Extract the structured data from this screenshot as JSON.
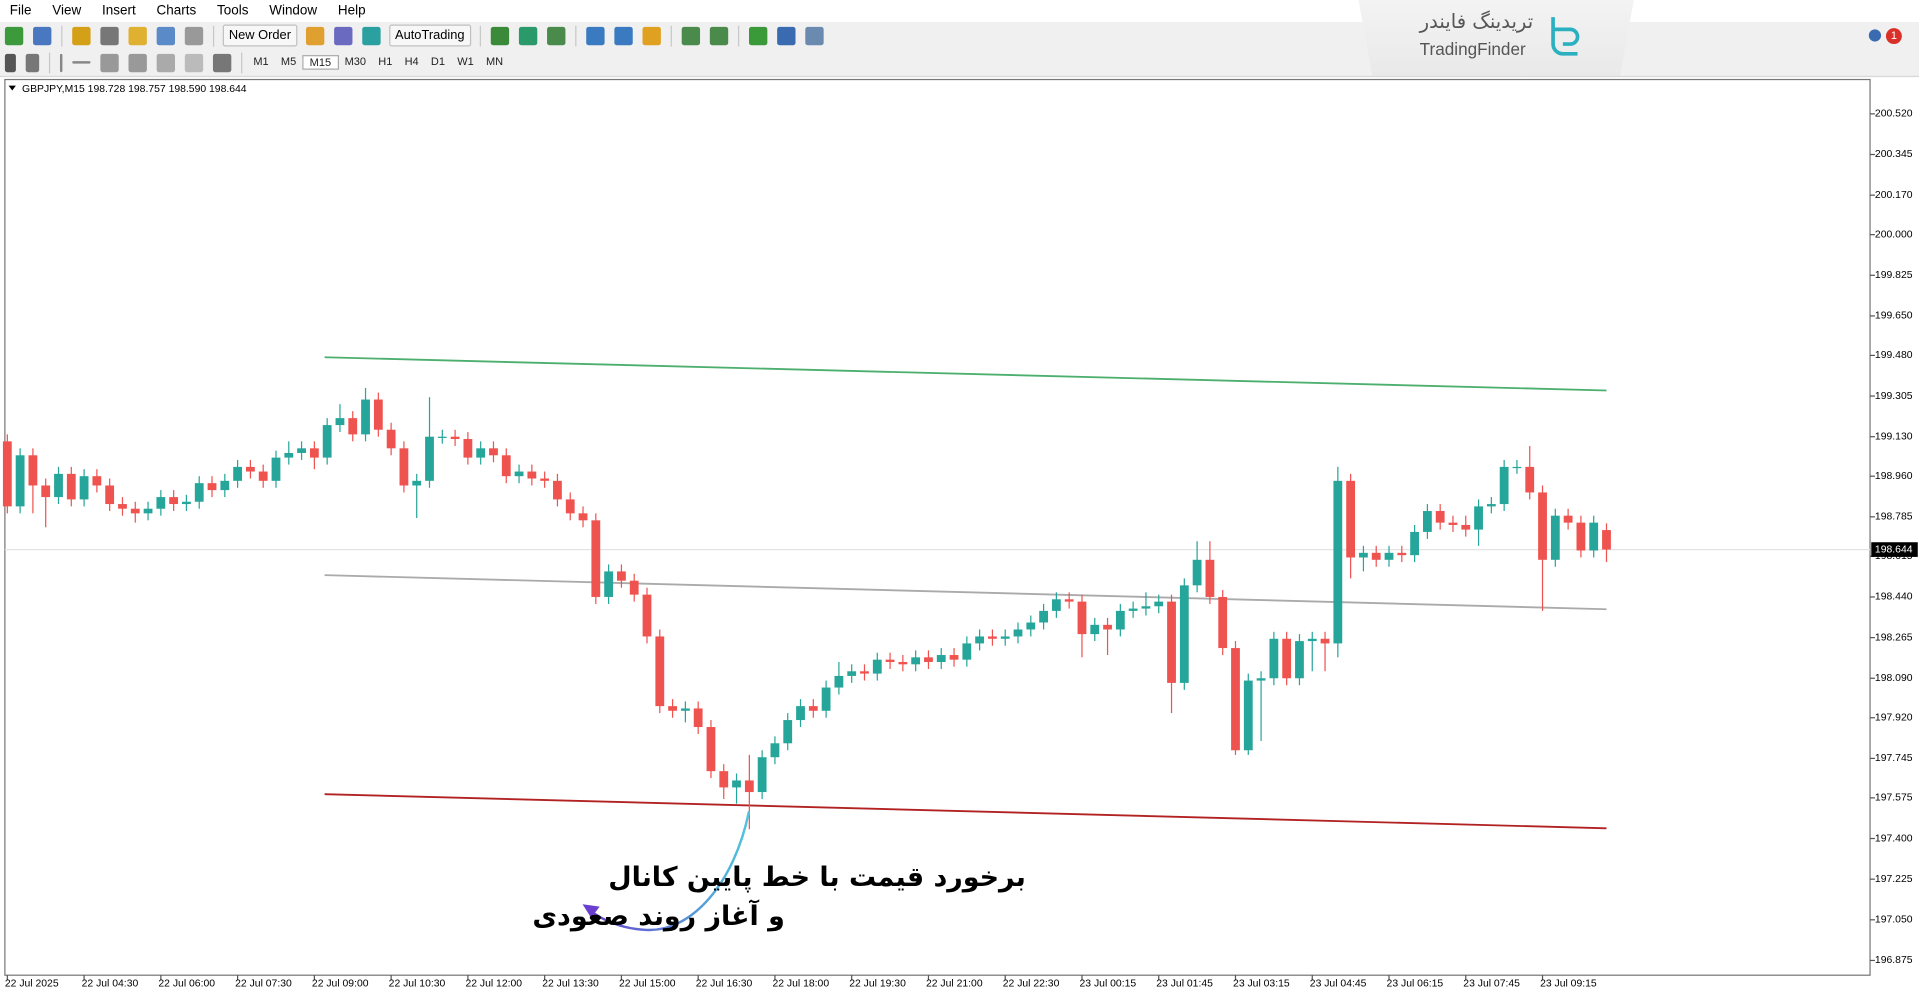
{
  "menu": [
    "File",
    "View",
    "Insert",
    "Charts",
    "Tools",
    "Window",
    "Help"
  ],
  "toolbar": {
    "new_order": "New Order",
    "auto_trading": "AutoTrading",
    "timeframes": [
      "M1",
      "M5",
      "M15",
      "M30",
      "H1",
      "H4",
      "D1",
      "W1",
      "MN"
    ]
  },
  "logo": {
    "fa": "تریدینگ فایندر",
    "en": "TradingFinder"
  },
  "notification": "1",
  "chart_data": {
    "type": "candlestick",
    "title": "GBPJPY,M15  198.728 198.757 198.590 198.644",
    "categories": [
      "22 Jul 2025",
      null,
      null,
      null,
      null,
      null,
      "22 Jul 04:30",
      null,
      null,
      null,
      null,
      null,
      "22 Jul 06:00",
      null,
      null,
      null,
      null,
      null,
      "22 Jul 07:30",
      null,
      null,
      null,
      null,
      null,
      "22 Jul 09:00",
      null,
      null,
      null,
      null,
      null,
      "22 Jul 10:30",
      null,
      null,
      null,
      null,
      null,
      "22 Jul 12:00",
      null,
      null,
      null,
      null,
      null,
      "22 Jul 13:30",
      null,
      null,
      null,
      null,
      null,
      "22 Jul 15:00",
      null,
      null,
      null,
      null,
      null,
      "22 Jul 16:30",
      null,
      null,
      null,
      null,
      null,
      "22 Jul 18:00",
      null,
      null,
      null,
      null,
      null,
      "22 Jul 19:30",
      null,
      null,
      null,
      null,
      null,
      "22 Jul 21:00",
      null,
      null,
      null,
      null,
      null,
      "22 Jul 22:30",
      null,
      null,
      null,
      null,
      null,
      "23 Jul 00:15",
      null,
      null,
      null,
      null,
      null,
      "23 Jul 01:45",
      null,
      null,
      null,
      null,
      null,
      "23 Jul 03:15",
      null,
      null,
      null,
      null,
      null,
      "23 Jul 04:45",
      null,
      null,
      null,
      null,
      null,
      "23 Jul 06:15",
      null,
      null,
      null,
      null,
      null,
      "23 Jul 07:45",
      null,
      null,
      null,
      null,
      null,
      "23 Jul 09:15",
      null,
      null,
      null,
      null,
      null
    ],
    "open": [
      199.11,
      198.83,
      199.05,
      198.92,
      198.87,
      198.97,
      198.86,
      198.96,
      198.92,
      198.84,
      198.82,
      198.8,
      198.82,
      198.87,
      198.84,
      198.85,
      198.93,
      198.9,
      198.94,
      199.0,
      198.98,
      198.94,
      199.04,
      199.06,
      199.08,
      199.04,
      199.18,
      199.21,
      199.14,
      199.29,
      199.16,
      199.08,
      198.92,
      198.94,
      199.13,
      199.13,
      199.12,
      199.04,
      199.08,
      199.05,
      198.96,
      198.98,
      198.95,
      198.94,
      198.86,
      198.8,
      198.77,
      198.44,
      198.55,
      198.51,
      198.45,
      198.27,
      197.97,
      197.95,
      197.96,
      197.88,
      197.69,
      197.62,
      197.65,
      197.6,
      197.75,
      197.81,
      197.91,
      197.97,
      197.95,
      198.05,
      198.1,
      198.12,
      198.11,
      198.17,
      198.16,
      198.15,
      198.18,
      198.16,
      198.19,
      198.17,
      198.24,
      198.27,
      198.26,
      198.27,
      198.3,
      198.33,
      198.38,
      198.43,
      198.42,
      198.28,
      198.32,
      198.3,
      198.38,
      198.39,
      198.4,
      198.42,
      198.07,
      198.49,
      198.6,
      198.44,
      198.22,
      197.78,
      198.08,
      198.09,
      198.26,
      198.09,
      198.25,
      198.26,
      198.24,
      198.94,
      198.61,
      198.63,
      198.6,
      198.63,
      198.62,
      198.72,
      198.81,
      198.76,
      198.75,
      198.73,
      198.83,
      198.84,
      199.0,
      199.0,
      198.89,
      198.6,
      198.79,
      198.76,
      198.64,
      198.728
    ],
    "high": [
      199.14,
      199.08,
      199.08,
      198.95,
      199.0,
      199.0,
      198.99,
      198.99,
      198.95,
      198.87,
      198.85,
      198.85,
      198.9,
      198.9,
      198.88,
      198.96,
      198.96,
      198.97,
      199.03,
      199.03,
      199.01,
      199.07,
      199.11,
      199.11,
      199.11,
      199.21,
      199.27,
      199.24,
      199.34,
      199.32,
      199.19,
      199.11,
      198.97,
      199.3,
      199.16,
      199.16,
      199.15,
      199.11,
      199.11,
      199.08,
      199.01,
      199.01,
      198.98,
      198.97,
      198.89,
      198.83,
      198.8,
      198.58,
      198.58,
      198.54,
      198.48,
      198.3,
      198.0,
      197.99,
      197.99,
      197.91,
      197.72,
      197.68,
      197.76,
      197.78,
      197.84,
      197.94,
      198.0,
      198.0,
      198.08,
      198.16,
      198.15,
      198.15,
      198.2,
      198.2,
      198.19,
      198.21,
      198.21,
      198.22,
      198.22,
      198.27,
      198.3,
      198.3,
      198.3,
      198.33,
      198.36,
      198.41,
      198.46,
      198.46,
      198.45,
      198.35,
      198.35,
      198.41,
      198.42,
      198.46,
      198.45,
      198.45,
      198.52,
      198.68,
      198.68,
      198.47,
      198.25,
      198.11,
      198.12,
      198.29,
      198.29,
      198.28,
      198.29,
      198.29,
      199.0,
      198.97,
      198.66,
      198.66,
      198.66,
      198.66,
      198.75,
      198.84,
      198.84,
      198.79,
      198.79,
      198.86,
      198.87,
      199.03,
      199.03,
      199.09,
      198.92,
      198.82,
      198.82,
      198.79,
      198.79,
      198.757
    ],
    "low": [
      198.8,
      198.8,
      198.8,
      198.74,
      198.84,
      198.83,
      198.83,
      198.89,
      198.81,
      198.79,
      198.76,
      198.77,
      198.79,
      198.81,
      198.81,
      198.82,
      198.87,
      198.87,
      198.91,
      198.95,
      198.91,
      198.91,
      199.01,
      199.03,
      198.99,
      199.01,
      199.15,
      199.11,
      199.11,
      199.13,
      199.05,
      198.89,
      198.78,
      198.91,
      199.1,
      199.09,
      199.01,
      199.01,
      199.02,
      198.93,
      198.93,
      198.92,
      198.91,
      198.83,
      198.77,
      198.74,
      198.41,
      198.41,
      198.48,
      198.42,
      198.24,
      197.94,
      197.92,
      197.9,
      197.85,
      197.66,
      197.57,
      197.55,
      197.44,
      197.57,
      197.72,
      197.78,
      197.88,
      197.92,
      197.92,
      198.02,
      198.07,
      198.08,
      198.08,
      198.13,
      198.12,
      198.12,
      198.13,
      198.13,
      198.14,
      198.14,
      198.21,
      198.23,
      198.23,
      198.24,
      198.27,
      198.3,
      198.35,
      198.39,
      198.18,
      198.25,
      198.19,
      198.27,
      198.35,
      198.36,
      198.37,
      197.94,
      198.04,
      198.46,
      198.41,
      198.19,
      197.76,
      197.76,
      197.82,
      198.06,
      198.06,
      198.06,
      198.12,
      198.12,
      198.18,
      198.52,
      198.55,
      198.57,
      198.57,
      198.59,
      198.59,
      198.69,
      198.73,
      198.72,
      198.7,
      198.66,
      198.8,
      198.81,
      198.97,
      198.86,
      198.38,
      198.57,
      198.73,
      198.61,
      198.61,
      198.59
    ],
    "close": [
      198.83,
      199.05,
      198.92,
      198.87,
      198.97,
      198.86,
      198.96,
      198.92,
      198.84,
      198.82,
      198.8,
      198.82,
      198.87,
      198.84,
      198.85,
      198.93,
      198.9,
      198.94,
      199.0,
      198.98,
      198.94,
      199.04,
      199.06,
      199.08,
      199.04,
      199.18,
      199.21,
      199.14,
      199.29,
      199.16,
      199.08,
      198.92,
      198.94,
      199.13,
      199.13,
      199.12,
      199.04,
      199.08,
      199.05,
      198.96,
      198.98,
      198.95,
      198.94,
      198.86,
      198.8,
      198.77,
      198.44,
      198.55,
      198.51,
      198.45,
      198.27,
      197.97,
      197.95,
      197.96,
      197.88,
      197.69,
      197.62,
      197.65,
      197.6,
      197.75,
      197.81,
      197.91,
      197.97,
      197.95,
      198.05,
      198.1,
      198.12,
      198.11,
      198.17,
      198.16,
      198.15,
      198.18,
      198.16,
      198.19,
      198.17,
      198.24,
      198.27,
      198.26,
      198.27,
      198.3,
      198.33,
      198.38,
      198.43,
      198.42,
      198.28,
      198.32,
      198.3,
      198.38,
      198.39,
      198.4,
      198.42,
      198.07,
      198.49,
      198.6,
      198.44,
      198.22,
      197.78,
      198.08,
      198.09,
      198.26,
      198.09,
      198.25,
      198.26,
      198.24,
      198.94,
      198.61,
      198.63,
      198.6,
      198.63,
      198.62,
      198.72,
      198.81,
      198.76,
      198.75,
      198.73,
      198.83,
      198.84,
      199.0,
      199.0,
      198.89,
      198.6,
      198.79,
      198.76,
      198.64,
      198.76,
      198.644
    ],
    "up_color": "#26a69a",
    "down_color": "#ef5350",
    "xlim": [
      -0.19,
      145.6
    ],
    "ylim": [
      196.822,
      200.652
    ],
    "yticks": [
      {
        "value": 200.52,
        "label": "200.520"
      },
      200.345,
      {
        "value": 200.17,
        "label": "200.170"
      },
      {
        "value": 200,
        "label": "200.000"
      },
      199.825,
      {
        "value": 199.65,
        "label": "199.650"
      },
      {
        "value": 199.48,
        "label": "199.480"
      },
      199.305,
      {
        "value": 199.13,
        "label": "199.130"
      },
      {
        "value": 198.96,
        "label": "198.960"
      },
      198.785,
      198.615,
      {
        "value": 198.44,
        "label": "198.440"
      },
      198.265,
      {
        "value": 198.09,
        "label": "198.090"
      },
      {
        "value": 197.92,
        "label": "197.920"
      },
      197.745,
      197.575,
      {
        "value": 197.4,
        "label": "197.400"
      },
      197.225,
      {
        "value": 197.05,
        "label": "197.050"
      },
      196.875
    ],
    "last_price": 198.644,
    "trend_lines": [
      {
        "color": "#4caf6e",
        "x": [
          24.8,
          125
        ],
        "values": [
          199.472,
          199.329
        ]
      },
      {
        "color": "#aaaaaa",
        "x": [
          24.8,
          125
        ],
        "values": [
          198.534,
          198.387
        ]
      },
      {
        "color": "#b22222",
        "x": [
          24.8,
          125
        ],
        "values": [
          197.591,
          197.444
        ]
      }
    ],
    "annotation": [
      "برخورد قیمت با خط پایین کانال",
      "و آغاز روند صعودی"
    ]
  }
}
